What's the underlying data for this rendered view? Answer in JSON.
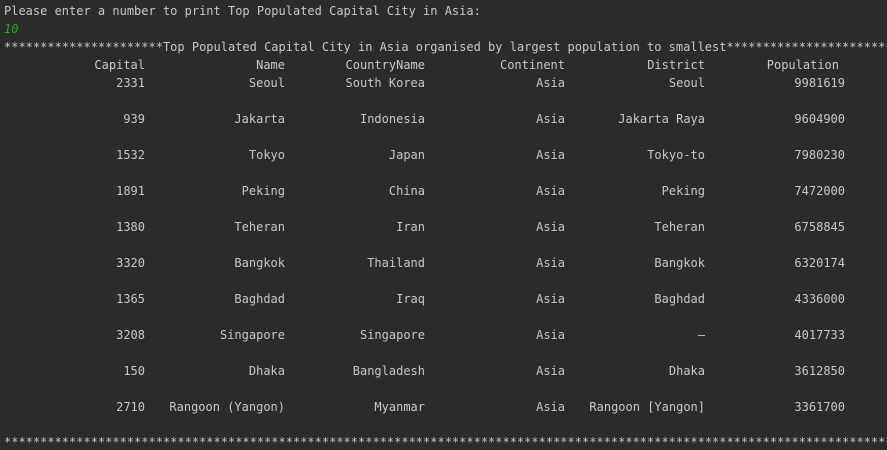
{
  "console": {
    "prompt": "Please enter a number to print Top Populated Capital City in Asia:",
    "user_input": "10",
    "banner": "**********************Top Populated Capital City in Asia organised by largest population to smallest***********************",
    "footer": "***************************************************************************************************************************"
  },
  "table": {
    "headers": [
      "Capital",
      "Name",
      "CountryName",
      "Continent",
      "District",
      "Population"
    ],
    "rows": [
      [
        "2331",
        "Seoul",
        "South Korea",
        "Asia",
        "Seoul",
        "9981619"
      ],
      [
        "939",
        "Jakarta",
        "Indonesia",
        "Asia",
        "Jakarta Raya",
        "9604900"
      ],
      [
        "1532",
        "Tokyo",
        "Japan",
        "Asia",
        "Tokyo-to",
        "7980230"
      ],
      [
        "1891",
        "Peking",
        "China",
        "Asia",
        "Peking",
        "7472000"
      ],
      [
        "1380",
        "Teheran",
        "Iran",
        "Asia",
        "Teheran",
        "6758845"
      ],
      [
        "3320",
        "Bangkok",
        "Thailand",
        "Asia",
        "Bangkok",
        "6320174"
      ],
      [
        "1365",
        "Baghdad",
        "Iraq",
        "Asia",
        "Baghdad",
        "4336000"
      ],
      [
        "3208",
        "Singapore",
        "Singapore",
        "Asia",
        "–",
        "4017733"
      ],
      [
        "150",
        "Dhaka",
        "Bangladesh",
        "Asia",
        "Dhaka",
        "3612850"
      ],
      [
        "2710",
        "Rangoon (Yangon)",
        "Myanmar",
        "Asia",
        "Rangoon [Yangon]",
        "3361700"
      ]
    ]
  }
}
